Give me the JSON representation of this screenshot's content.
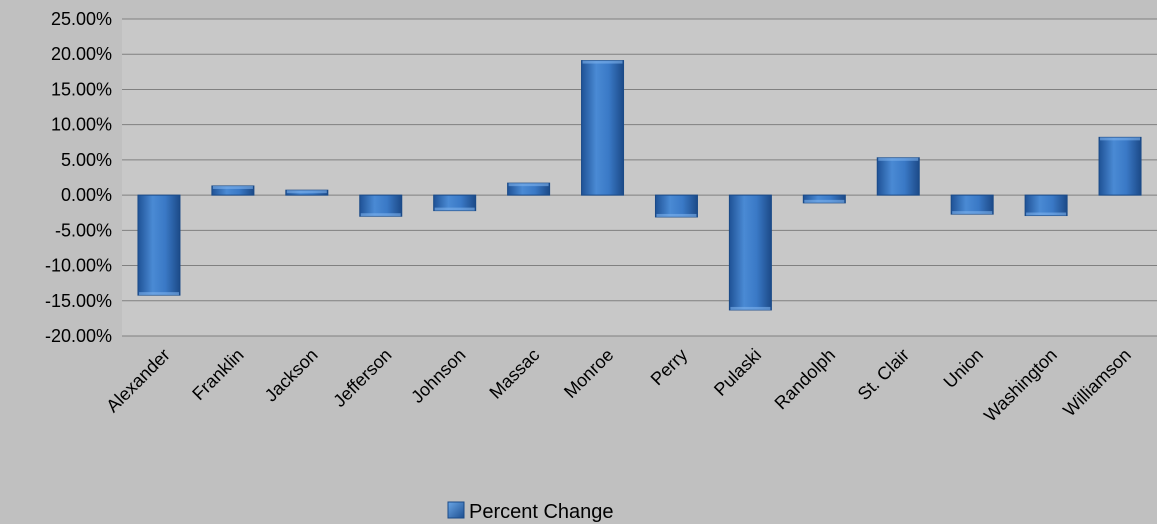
{
  "chart_data": {
    "type": "bar",
    "title": "",
    "xlabel": "",
    "ylabel": "",
    "categories": [
      "Alexander",
      "Franklin",
      "Jackson",
      "Jefferson",
      "Johnson",
      "Massac",
      "Monroe",
      "Perry",
      "Pulaski",
      "Randolph",
      "St. Clair",
      "Union",
      "Washington",
      "Williamson"
    ],
    "series": [
      {
        "name": "Percent Change",
        "values": [
          -14.2,
          1.3,
          0.7,
          -3.0,
          -2.2,
          1.7,
          19.1,
          -3.1,
          -16.3,
          -1.1,
          5.3,
          -2.7,
          -2.9,
          8.2
        ]
      }
    ],
    "ylim": [
      -20,
      25
    ],
    "y_ticks": [
      25,
      20,
      15,
      10,
      5,
      0,
      -5,
      -10,
      -15,
      -20
    ],
    "y_tick_labels": [
      "25.00%",
      "20.00%",
      "15.00%",
      "10.00%",
      "5.00%",
      "0.00%",
      "-5.00%",
      "-10.00%",
      "-15.00%",
      "-20.00%"
    ],
    "grid": true,
    "legend_position": "bottom",
    "colors": {
      "background": "#c0c0c0",
      "plot_background": "#c8c8c8",
      "bar_fill": "#2e6fbe",
      "bar_light": "#5b9be0",
      "bar_dark": "#1d4f91",
      "bar_outline": "#1a4a87",
      "gridline": "#808080",
      "text": "#000000"
    }
  }
}
